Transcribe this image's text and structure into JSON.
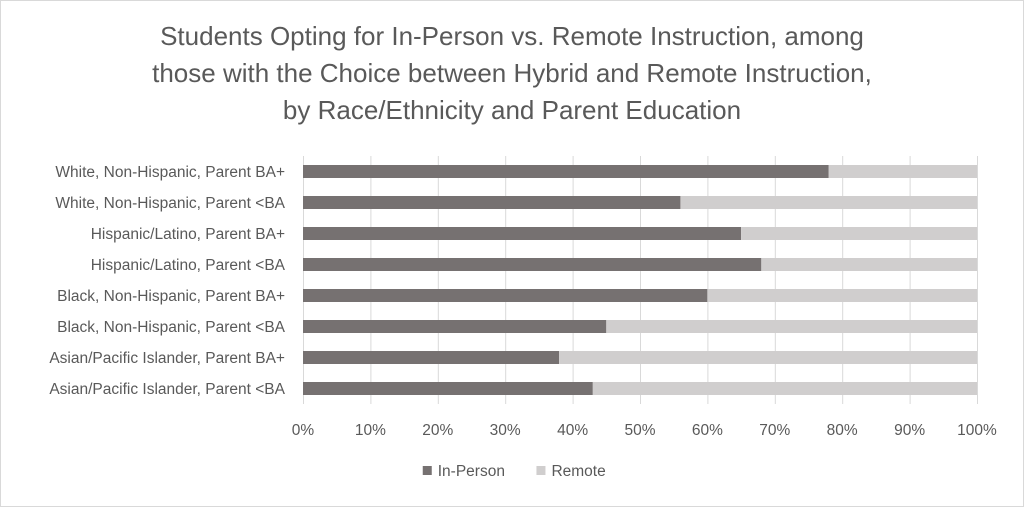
{
  "chart_data": {
    "type": "bar",
    "orientation": "horizontal",
    "stacked": true,
    "title_lines": [
      "Students Opting for In-Person vs. Remote Instruction, among",
      "those with the Choice between Hybrid and Remote Instruction,",
      "by Race/Ethnicity and Parent Education"
    ],
    "categories": [
      "White, Non-Hispanic, Parent BA+",
      "White, Non-Hispanic, Parent <BA",
      "Hispanic/Latino, Parent BA+",
      "Hispanic/Latino, Parent <BA",
      "Black, Non-Hispanic, Parent BA+",
      "Black, Non-Hispanic, Parent <BA",
      "Asian/Pacific Islander, Parent BA+",
      "Asian/Pacific Islander, Parent <BA"
    ],
    "series": [
      {
        "name": "In-Person",
        "color": "#767171",
        "values": [
          78,
          56,
          65,
          68,
          60,
          45,
          38,
          43
        ]
      },
      {
        "name": "Remote",
        "color": "#d0cece",
        "values": [
          22,
          44,
          35,
          32,
          40,
          55,
          62,
          57
        ]
      }
    ],
    "x_ticks": [
      "0%",
      "10%",
      "20%",
      "30%",
      "40%",
      "50%",
      "60%",
      "70%",
      "80%",
      "90%",
      "100%"
    ],
    "xlim": [
      0,
      100
    ],
    "grid": true,
    "legend_position": "bottom"
  }
}
